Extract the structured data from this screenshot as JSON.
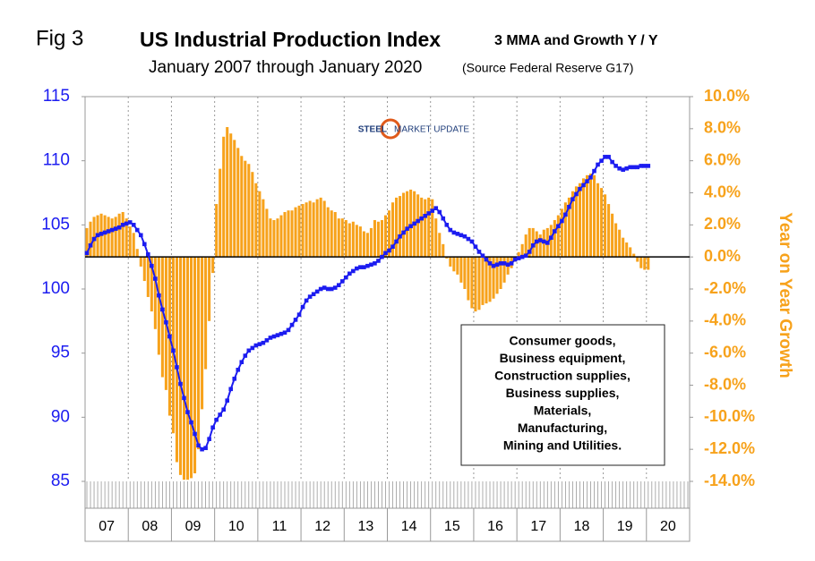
{
  "chart_data": {
    "type": "bar-line",
    "fig_label": "Fig 3",
    "title": "US Industrial Production Index",
    "title_suffix": "3 MMA and Growth Y / Y",
    "subtitle": "January 2007 through January 2020",
    "source": "(Source Federal Reserve G17)",
    "logo": {
      "left": "STEEL",
      "right": "MARKET UPDATE"
    },
    "y2_label": "Year on Year Growth",
    "note_lines": [
      "Consumer goods,",
      "Business equipment,",
      "Construction supplies,",
      "Business supplies,",
      "Materials,",
      "Manufacturing,",
      "Mining and Utilities."
    ],
    "categories": [
      "07",
      null,
      null,
      null,
      null,
      null,
      null,
      null,
      null,
      null,
      null,
      null,
      "08",
      null,
      null,
      null,
      null,
      null,
      null,
      null,
      null,
      null,
      null,
      null,
      "09",
      null,
      null,
      null,
      null,
      null,
      null,
      null,
      null,
      null,
      null,
      null,
      "10",
      null,
      null,
      null,
      null,
      null,
      null,
      null,
      null,
      null,
      null,
      null,
      "11",
      null,
      null,
      null,
      null,
      null,
      null,
      null,
      null,
      null,
      null,
      null,
      "12",
      null,
      null,
      null,
      null,
      null,
      null,
      null,
      null,
      null,
      null,
      null,
      "13",
      null,
      null,
      null,
      null,
      null,
      null,
      null,
      null,
      null,
      null,
      null,
      "14",
      null,
      null,
      null,
      null,
      null,
      null,
      null,
      null,
      null,
      null,
      null,
      "15",
      null,
      null,
      null,
      null,
      null,
      null,
      null,
      null,
      null,
      null,
      null,
      "16",
      null,
      null,
      null,
      null,
      null,
      null,
      null,
      null,
      null,
      null,
      null,
      "17",
      null,
      null,
      null,
      null,
      null,
      null,
      null,
      null,
      null,
      null,
      null,
      "18",
      null,
      null,
      null,
      null,
      null,
      null,
      null,
      null,
      null,
      null,
      null,
      "19",
      null,
      null,
      null,
      null,
      null,
      null,
      null,
      null,
      null,
      null,
      null,
      "20"
    ],
    "series": [
      {
        "type": "bar",
        "axis": "y2",
        "color": "#f7a21b",
        "values": [
          1.8,
          2.2,
          2.5,
          2.6,
          2.7,
          2.6,
          2.5,
          2.4,
          2.5,
          2.7,
          2.8,
          2.4,
          1.9,
          1.5,
          0.5,
          -0.6,
          -1.5,
          -2.5,
          -3.4,
          -4.5,
          -6.1,
          -7.5,
          -8.3,
          -9.9,
          -11.0,
          -12.8,
          -13.6,
          -13.9,
          -13.9,
          -13.8,
          -13.5,
          -12.0,
          -9.5,
          -7.0,
          -4.0,
          -1.0,
          3.3,
          5.5,
          7.5,
          8.1,
          7.7,
          7.3,
          6.8,
          6.3,
          6.0,
          5.8,
          5.3,
          4.6,
          4.1,
          3.6,
          3.0,
          2.4,
          2.3,
          2.4,
          2.6,
          2.8,
          2.9,
          2.9,
          3.1,
          3.2,
          3.3,
          3.4,
          3.5,
          3.4,
          3.6,
          3.7,
          3.5,
          3.1,
          2.9,
          2.8,
          2.4,
          2.4,
          2.3,
          2.1,
          2.2,
          2.0,
          1.9,
          1.6,
          1.5,
          1.8,
          2.3,
          2.2,
          2.3,
          2.6,
          2.9,
          3.4,
          3.7,
          3.8,
          4.0,
          4.1,
          4.2,
          4.1,
          3.9,
          3.7,
          3.6,
          3.7,
          3.6,
          2.4,
          1.5,
          0.8,
          -0.1,
          -0.6,
          -0.9,
          -1.1,
          -1.6,
          -2.0,
          -2.7,
          -3.2,
          -3.4,
          -3.3,
          -3.0,
          -2.9,
          -2.8,
          -2.6,
          -2.3,
          -2.0,
          -1.6,
          -1.1,
          -0.7,
          -0.3,
          0.3,
          0.8,
          1.4,
          1.8,
          1.8,
          1.6,
          1.4,
          1.7,
          1.8,
          2.0,
          2.3,
          2.6,
          3.0,
          3.4,
          3.7,
          4.1,
          4.4,
          4.6,
          4.9,
          5.1,
          5.2,
          5.1,
          4.6,
          4.3,
          3.9,
          3.3,
          2.7,
          2.1,
          1.7,
          1.2,
          0.9,
          0.6,
          0.2,
          -0.3,
          -0.7,
          -0.8,
          -0.8
        ]
      },
      {
        "type": "line",
        "axis": "y",
        "color": "#1c1cf0",
        "values": [
          102.8,
          103.4,
          103.9,
          104.2,
          104.3,
          104.4,
          104.5,
          104.6,
          104.7,
          104.8,
          105.0,
          105.1,
          105.2,
          105.0,
          104.6,
          104.2,
          103.5,
          102.7,
          101.8,
          100.8,
          99.5,
          98.4,
          97.4,
          96.3,
          95.2,
          93.9,
          92.6,
          91.5,
          90.4,
          89.6,
          88.7,
          87.8,
          87.5,
          87.6,
          88.3,
          89.2,
          89.8,
          90.2,
          90.6,
          91.3,
          92.2,
          93.0,
          93.7,
          94.3,
          94.8,
          95.2,
          95.4,
          95.6,
          95.7,
          95.8,
          96.0,
          96.2,
          96.3,
          96.4,
          96.5,
          96.6,
          96.8,
          97.2,
          97.6,
          98.0,
          98.6,
          99.1,
          99.4,
          99.6,
          99.8,
          100.0,
          100.1,
          100.0,
          100.0,
          100.1,
          100.3,
          100.6,
          100.9,
          101.2,
          101.4,
          101.6,
          101.7,
          101.7,
          101.8,
          101.9,
          102.0,
          102.2,
          102.5,
          102.8,
          103.0,
          103.3,
          103.7,
          104.1,
          104.4,
          104.7,
          104.9,
          105.1,
          105.3,
          105.5,
          105.7,
          105.9,
          106.1,
          106.3,
          106.0,
          105.5,
          105.0,
          104.6,
          104.4,
          104.3,
          104.2,
          104.1,
          103.9,
          103.7,
          103.3,
          102.9,
          102.6,
          102.3,
          102.0,
          101.8,
          101.9,
          102.0,
          102.0,
          101.9,
          102.0,
          102.3,
          102.4,
          102.5,
          102.6,
          102.9,
          103.4,
          103.7,
          103.8,
          103.7,
          103.6,
          104.0,
          104.5,
          104.9,
          105.3,
          105.8,
          106.4,
          107.0,
          107.4,
          107.8,
          108.1,
          108.4,
          108.7,
          109.2,
          109.7,
          110.0,
          110.3,
          110.3,
          109.9,
          109.6,
          109.4,
          109.3,
          109.4,
          109.5,
          109.5,
          109.5,
          109.6,
          109.6,
          109.6
        ]
      }
    ],
    "ylim": [
      85,
      115
    ],
    "yticks": [
      85,
      90,
      95,
      100,
      105,
      110,
      115
    ],
    "y2lim": [
      -14,
      10
    ],
    "y2ticks": [
      {
        "value": -14,
        "label": "-14.0%"
      },
      {
        "value": -12,
        "label": "-12.0%"
      },
      {
        "value": -10,
        "label": "-10.0%"
      },
      {
        "value": -8,
        "label": "-8.0%"
      },
      {
        "value": -6,
        "label": "-6.0%"
      },
      {
        "value": -4,
        "label": "-4.0%"
      },
      {
        "value": -2,
        "label": "-2.0%"
      },
      {
        "value": 0,
        "label": "0.0%"
      },
      {
        "value": 2,
        "label": "2.0%"
      },
      {
        "value": 4,
        "label": "4.0%"
      },
      {
        "value": 6,
        "label": "6.0%"
      },
      {
        "value": 8,
        "label": "8.0%"
      },
      {
        "value": 10,
        "label": "10.0%"
      }
    ],
    "y_color": "#1c1cf0",
    "y2_color": "#f7a21b"
  }
}
